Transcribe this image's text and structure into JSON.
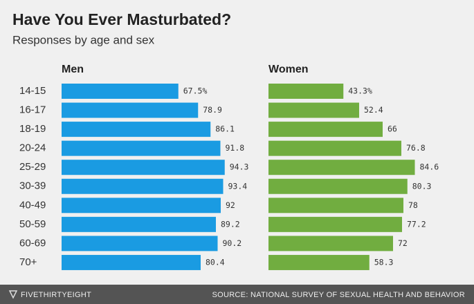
{
  "header": {
    "title": "Have You Ever Masturbated?",
    "subtitle": "Responses by age and sex"
  },
  "chart_data": {
    "type": "bar",
    "categories": [
      "14-15",
      "16-17",
      "18-19",
      "20-24",
      "25-29",
      "30-39",
      "40-49",
      "50-59",
      "60-69",
      "70+"
    ],
    "series": [
      {
        "name": "Men",
        "color": "#1a9be2",
        "values": [
          67.5,
          78.9,
          86.1,
          91.8,
          94.3,
          93.4,
          92,
          89.2,
          90.2,
          80.4
        ],
        "value_labels": [
          "67.5%",
          "78.9",
          "86.1",
          "91.8",
          "94.3",
          "93.4",
          "92",
          "89.2",
          "90.2",
          "80.4"
        ]
      },
      {
        "name": "Women",
        "color": "#71ad40",
        "values": [
          43.3,
          52.4,
          66,
          76.8,
          84.6,
          80.3,
          78,
          77.2,
          72,
          58.3
        ],
        "value_labels": [
          "43.3%",
          "52.4",
          "66",
          "76.8",
          "84.6",
          "80.3",
          "78",
          "77.2",
          "72",
          "58.3"
        ]
      }
    ]
  },
  "footer": {
    "brand": "FIVETHIRTYEIGHT",
    "source": "SOURCE: NATIONAL SURVEY OF SEXUAL HEALTH AND BEHAVIOR"
  }
}
